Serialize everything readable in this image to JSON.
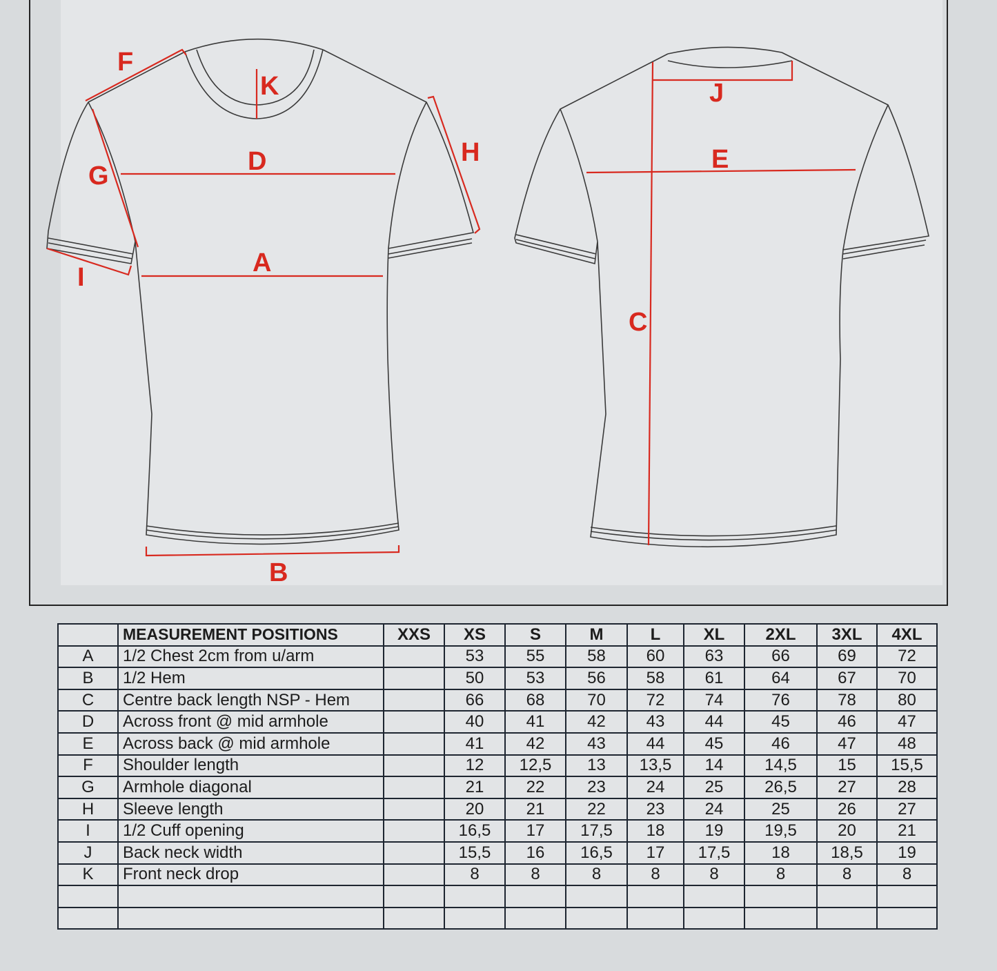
{
  "diagram": {
    "labels": {
      "A": "A",
      "B": "B",
      "C": "C",
      "D": "D",
      "E": "E",
      "F": "F",
      "G": "G",
      "H": "H",
      "I": "I",
      "J": "J",
      "K": "K"
    },
    "measure_color": "#d8291f"
  },
  "table": {
    "header": "MEASUREMENT POSITIONS",
    "sizes": [
      "XXS",
      "XS",
      "S",
      "M",
      "L",
      "XL",
      "2XL",
      "3XL",
      "4XL"
    ],
    "rows": [
      {
        "code": "A",
        "desc": "1/2 Chest 2cm from u/arm",
        "values": [
          "",
          "53",
          "55",
          "58",
          "60",
          "63",
          "66",
          "69",
          "72"
        ]
      },
      {
        "code": "B",
        "desc": "1/2 Hem",
        "values": [
          "",
          "50",
          "53",
          "56",
          "58",
          "61",
          "64",
          "67",
          "70"
        ]
      },
      {
        "code": "C",
        "desc": "Centre back length NSP - Hem",
        "values": [
          "",
          "66",
          "68",
          "70",
          "72",
          "74",
          "76",
          "78",
          "80"
        ]
      },
      {
        "code": "D",
        "desc": "Across front @ mid armhole",
        "values": [
          "",
          "40",
          "41",
          "42",
          "43",
          "44",
          "45",
          "46",
          "47"
        ]
      },
      {
        "code": "E",
        "desc": "Across back @ mid armhole",
        "values": [
          "",
          "41",
          "42",
          "43",
          "44",
          "45",
          "46",
          "47",
          "48"
        ]
      },
      {
        "code": "F",
        "desc": "Shoulder length",
        "values": [
          "",
          "12",
          "12,5",
          "13",
          "13,5",
          "14",
          "14,5",
          "15",
          "15,5"
        ]
      },
      {
        "code": "G",
        "desc": "Armhole diagonal",
        "values": [
          "",
          "21",
          "22",
          "23",
          "24",
          "25",
          "26,5",
          "27",
          "28"
        ]
      },
      {
        "code": "H",
        "desc": "Sleeve length",
        "values": [
          "",
          "20",
          "21",
          "22",
          "23",
          "24",
          "25",
          "26",
          "27"
        ]
      },
      {
        "code": "I",
        "desc": "1/2 Cuff opening",
        "values": [
          "",
          "16,5",
          "17",
          "17,5",
          "18",
          "19",
          "19,5",
          "20",
          "21"
        ]
      },
      {
        "code": "J",
        "desc": "Back neck width",
        "values": [
          "",
          "15,5",
          "16",
          "16,5",
          "17",
          "17,5",
          "18",
          "18,5",
          "19"
        ]
      },
      {
        "code": "K",
        "desc": "Front neck drop",
        "values": [
          "",
          "8",
          "8",
          "8",
          "8",
          "8",
          "8",
          "8",
          "8"
        ]
      },
      {
        "code": "",
        "desc": "",
        "values": [
          "",
          "",
          "",
          "",
          "",
          "",
          "",
          "",
          ""
        ]
      },
      {
        "code": "",
        "desc": "",
        "values": [
          "",
          "",
          "",
          "",
          "",
          "",
          "",
          "",
          ""
        ]
      }
    ]
  }
}
